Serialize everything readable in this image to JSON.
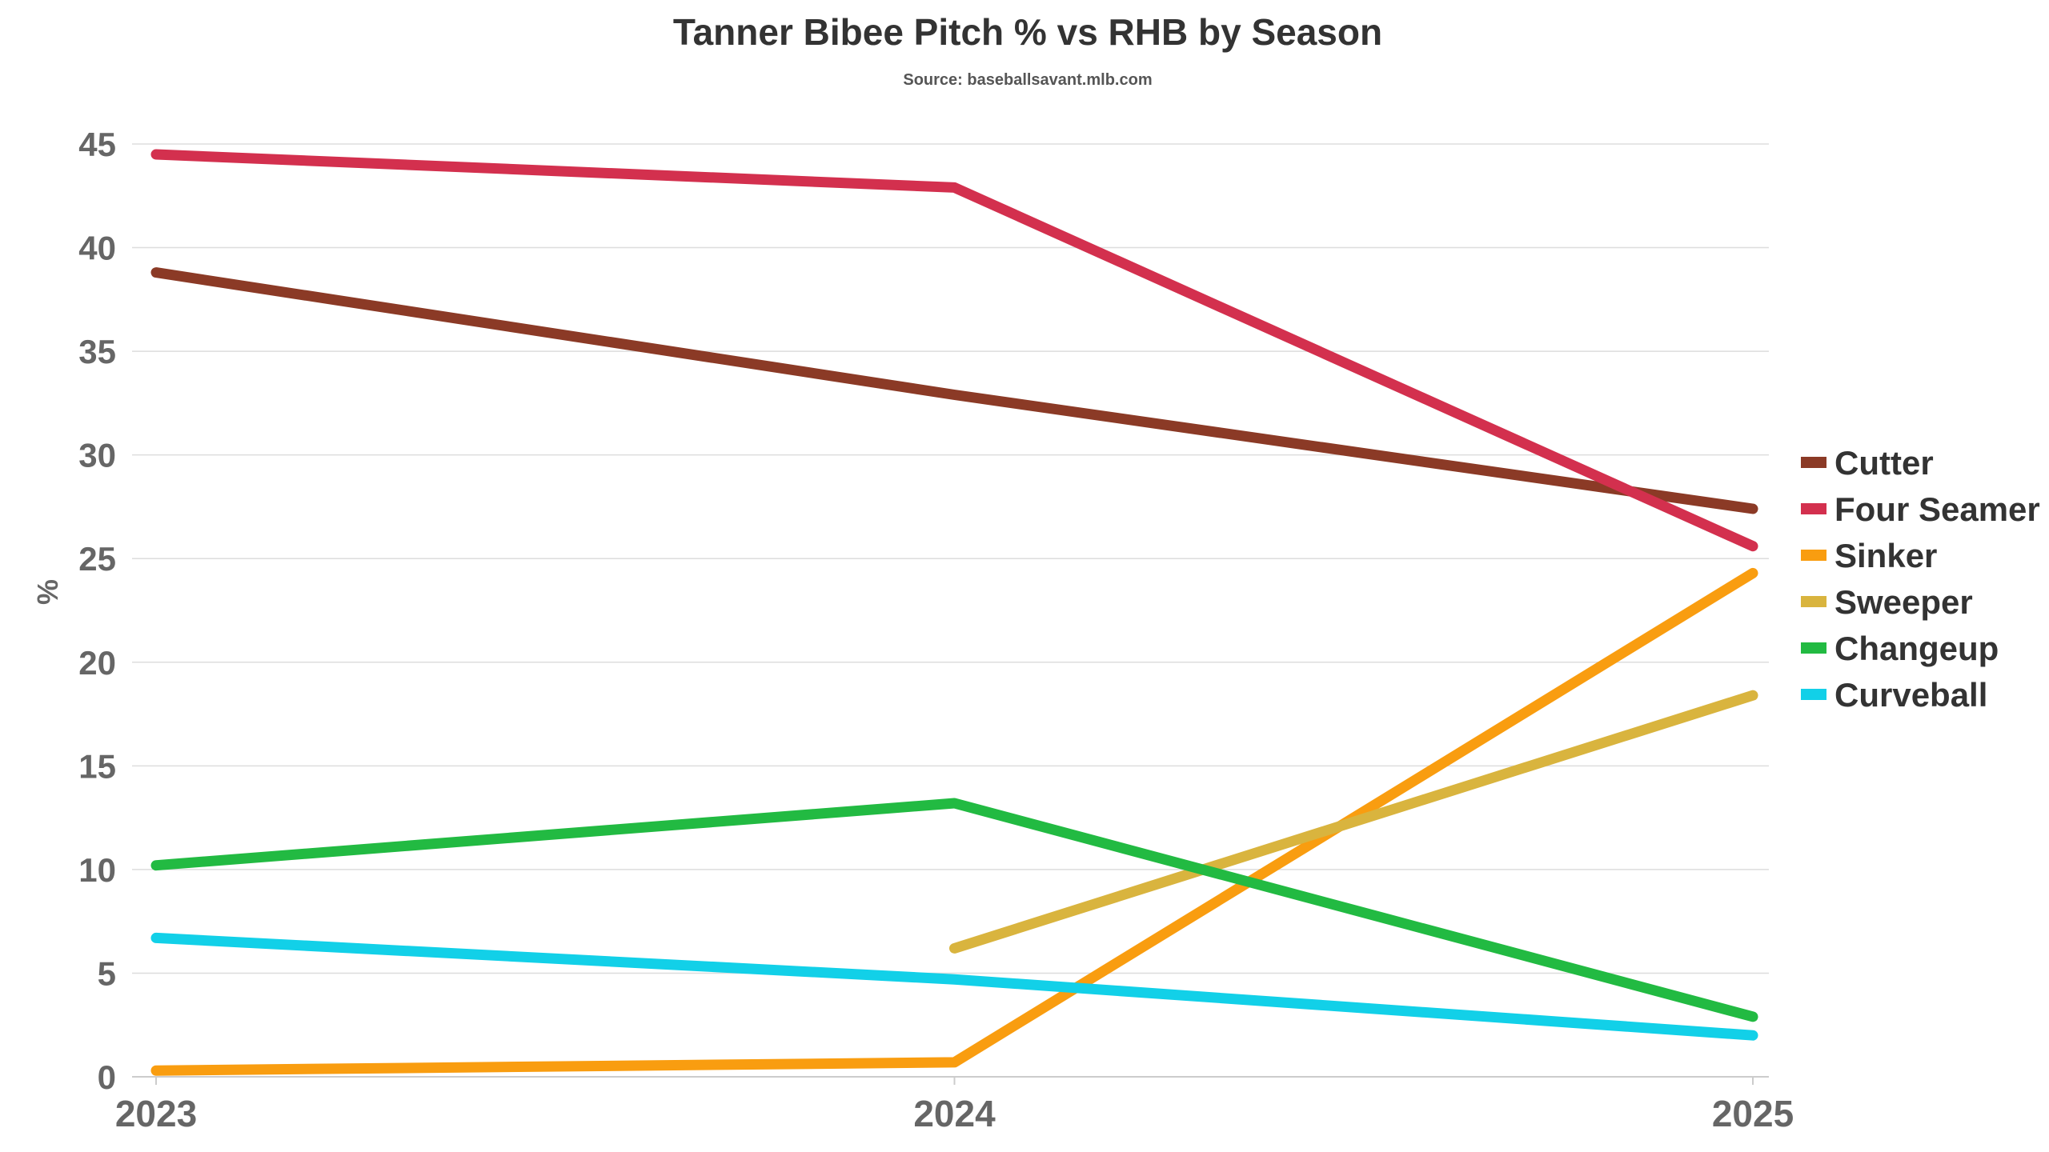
{
  "chart_data": {
    "type": "line",
    "title": "Tanner Bibee Pitch % vs RHB by Season",
    "subtitle": "Source: baseballsavant.mlb.com",
    "xlabel": "",
    "ylabel": "%",
    "x": [
      "2023",
      "2024",
      "2025"
    ],
    "ylim": [
      0,
      45
    ],
    "yticks": [
      "0",
      "5",
      "10",
      "15",
      "20",
      "25",
      "30",
      "35",
      "40",
      "45"
    ],
    "grid": true,
    "legend_position": "right",
    "series": [
      {
        "name": "Cutter",
        "color": "#8B3A26",
        "values": [
          38.8,
          32.9,
          27.4
        ]
      },
      {
        "name": "Four Seamer",
        "color": "#D3304E",
        "values": [
          44.5,
          42.9,
          25.6
        ]
      },
      {
        "name": "Sinker",
        "color": "#F99D10",
        "values": [
          0.3,
          0.7,
          24.3
        ]
      },
      {
        "name": "Sweeper",
        "color": "#D9B43E",
        "values": [
          null,
          6.2,
          18.4
        ]
      },
      {
        "name": "Changeup",
        "color": "#22BA42",
        "values": [
          10.2,
          13.2,
          2.9
        ]
      },
      {
        "name": "Curveball",
        "color": "#12D0E8",
        "values": [
          6.7,
          4.7,
          2.0
        ]
      }
    ]
  }
}
